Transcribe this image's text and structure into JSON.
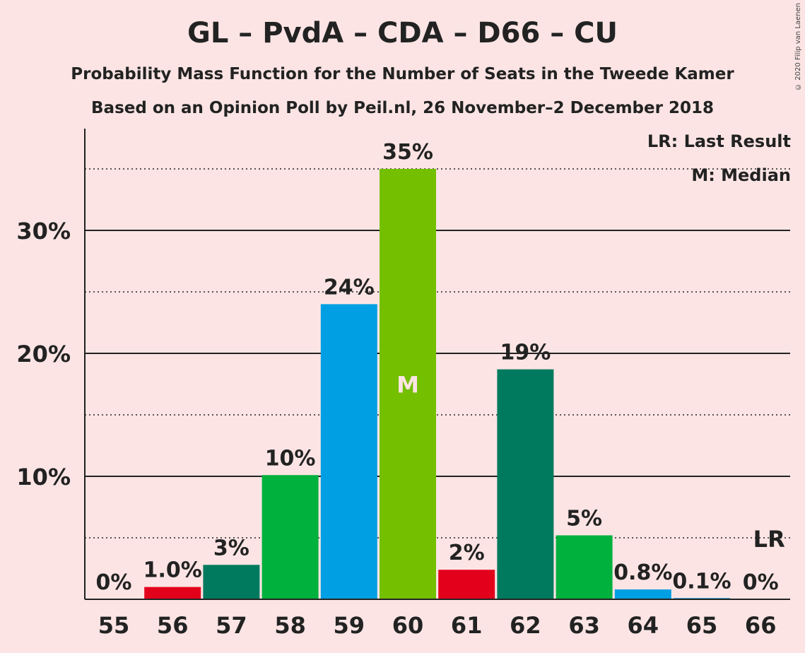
{
  "title": "GL – PvdA – CDA – D66 – CU",
  "subtitle": "Probability Mass Function for the Number of Seats in the Tweede Kamer",
  "subtitle2": "Based on an Opinion Poll by Peil.nl, 26 November–2 December 2018",
  "copyright": "© 2020 Filip van Laenen",
  "legend": {
    "last_result": "LR: Last Result",
    "median": "M: Median"
  },
  "chart_data": {
    "type": "bar",
    "categories": [
      "55",
      "56",
      "57",
      "58",
      "59",
      "60",
      "61",
      "62",
      "63",
      "64",
      "65",
      "66"
    ],
    "values": [
      0,
      1.0,
      2.8,
      10.1,
      24.0,
      35.0,
      2.4,
      18.7,
      5.2,
      0.8,
      0.1,
      0
    ],
    "labels": [
      "0%",
      "1.0%",
      "3%",
      "10%",
      "24%",
      "35%",
      "2%",
      "19%",
      "5%",
      "0.8%",
      "0.1%",
      "0%"
    ],
    "colors": [
      "#E3001B",
      "#E3001B",
      "#007A5E",
      "#00B13D",
      "#009FE3",
      "#73BF00",
      "#E3001B",
      "#007A5E",
      "#00B13D",
      "#009FE3",
      "#009FE3",
      "#009FE3"
    ],
    "ylim": [
      0,
      38
    ],
    "yticks": [
      10,
      20,
      30
    ],
    "ytick_labels": [
      "10%",
      "20%",
      "30%"
    ],
    "minor_gridlines": [
      5,
      15,
      25,
      35
    ],
    "median": {
      "category": "60",
      "label": "M"
    },
    "last_result": {
      "category": "66",
      "label": "LR"
    }
  }
}
